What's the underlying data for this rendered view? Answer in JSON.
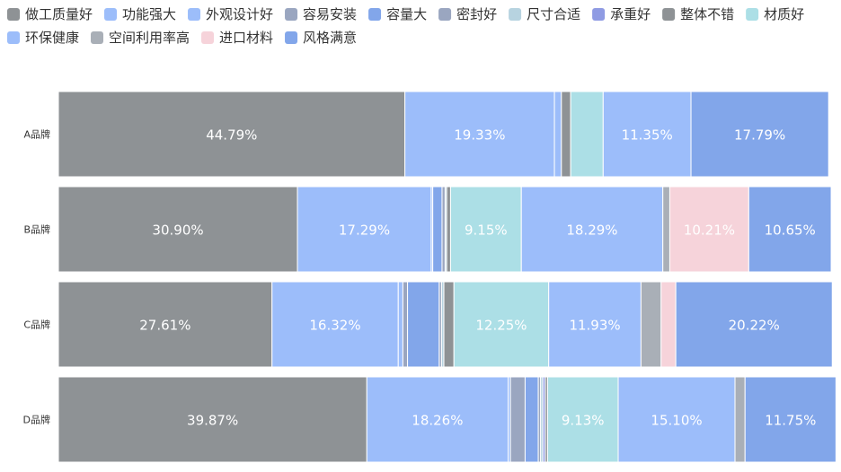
{
  "chart_data": {
    "type": "bar",
    "orientation": "horizontal",
    "stacked": true,
    "normalized": true,
    "xlim": [
      0,
      100
    ],
    "legend": "top-left",
    "grid": false,
    "categories": [
      "A品牌",
      "B品牌",
      "C品牌",
      "D品牌"
    ],
    "series": [
      {
        "name": "做工质量好",
        "color": "#8e9295",
        "values": [
          44.79,
          30.9,
          27.61,
          39.87
        ]
      },
      {
        "name": "功能强大",
        "color": "#9cbdfa",
        "values": [
          19.33,
          17.29,
          16.32,
          18.26
        ]
      },
      {
        "name": "外观设计好",
        "color": "#9cbdfa",
        "values": [
          0.9,
          0.2,
          0.6,
          0.3
        ]
      },
      {
        "name": "容易安装",
        "color": "#9aa6c0",
        "values": [
          0.0,
          0.0,
          0.6,
          1.9
        ]
      },
      {
        "name": "容量大",
        "color": "#82a6ea",
        "values": [
          0.0,
          1.2,
          4.1,
          1.7
        ]
      },
      {
        "name": "密封好",
        "color": "#9aa6c0",
        "values": [
          0.0,
          0.4,
          0.3,
          0.3
        ]
      },
      {
        "name": "尺寸合适",
        "color": "#b7d3e0",
        "values": [
          0.0,
          0.2,
          0.3,
          0.3
        ]
      },
      {
        "name": "承重好",
        "color": "#8f9be3",
        "values": [
          0.0,
          0.0,
          0.0,
          0.3
        ]
      },
      {
        "name": "整体不错",
        "color": "#8e9295",
        "values": [
          1.2,
          0.5,
          1.3,
          0.3
        ]
      },
      {
        "name": "材质好",
        "color": "#acdfe6",
        "values": [
          4.2,
          9.15,
          12.25,
          9.13
        ]
      },
      {
        "name": "环保健康",
        "color": "#9cbdfa",
        "values": [
          11.35,
          18.29,
          11.93,
          15.1
        ]
      },
      {
        "name": "空间利用率高",
        "color": "#a9afb7",
        "values": [
          0.0,
          0.9,
          2.6,
          1.3
        ]
      },
      {
        "name": "进口材料",
        "color": "#f6d3da",
        "values": [
          0.0,
          10.21,
          1.9,
          0.0
        ]
      },
      {
        "name": "风格满意",
        "color": "#82a6ea",
        "values": [
          17.79,
          10.65,
          20.22,
          11.75
        ]
      }
    ],
    "data_labels": [
      [
        "44.79%",
        "19.33%",
        "",
        "",
        "",
        "",
        "",
        "",
        "",
        "",
        "11.35%",
        "",
        "",
        "17.79%"
      ],
      [
        "30.90%",
        "17.29%",
        "",
        "",
        "",
        "",
        "",
        "",
        "",
        "9.15%",
        "18.29%",
        "",
        "10.21%",
        "10.65%"
      ],
      [
        "27.61%",
        "16.32%",
        "",
        "",
        "",
        "",
        "",
        "",
        "",
        "12.25%",
        "11.93%",
        "",
        "",
        "20.22%"
      ],
      [
        "39.87%",
        "18.26%",
        "",
        "",
        "",
        "",
        "",
        "",
        "",
        "9.13%",
        "15.10%",
        "",
        "",
        "11.75%"
      ]
    ]
  }
}
